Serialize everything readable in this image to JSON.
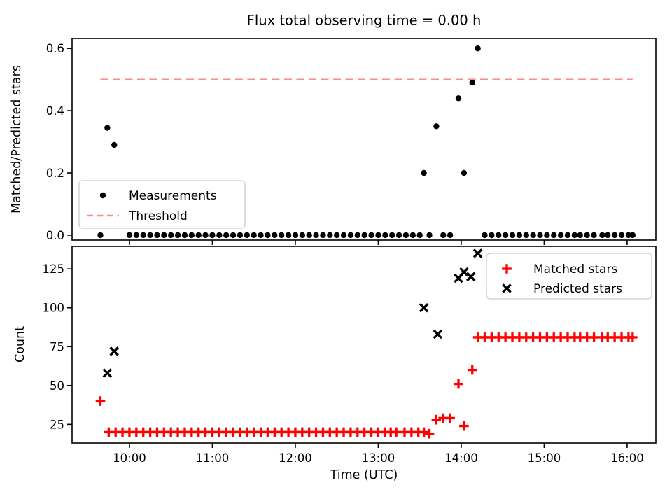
{
  "figure": {
    "title": "Flux total observing time = 0.00 h",
    "background_color": "#ffffff"
  },
  "colors": {
    "measurement_black": "#000000",
    "matched_red": "#ff0000",
    "threshold_pink": "#ff8a8a",
    "axis_black": "#000000",
    "legend_border": "#cccccc"
  },
  "chart_data": {
    "type": "scatter",
    "title": "Flux total observing time = 0.00 h",
    "x_axis": {
      "label": "Time (UTC)",
      "ticks": [
        "10:00",
        "11:00",
        "12:00",
        "13:00",
        "14:00",
        "15:00",
        "16:00"
      ],
      "tick_minutes": [
        60,
        120,
        180,
        240,
        300,
        360,
        420
      ],
      "range_minutes": [
        18.5,
        440.8
      ]
    },
    "subplots": [
      {
        "id": "ratio",
        "ylabel": "Matched/Predicted stars",
        "ytick_labels": [
          "0.0",
          "0.2",
          "0.4",
          "0.6"
        ],
        "yticks": [
          0.0,
          0.2,
          0.4,
          0.6
        ],
        "ylim": [
          -0.016,
          0.632
        ],
        "show_x_tick_labels": false,
        "grid": false,
        "threshold_value": 0.5,
        "legend": {
          "position": "lower-left",
          "entries": [
            {
              "label": "Measurements",
              "marker": "dot",
              "color": "#000000"
            },
            {
              "label": "Threshold",
              "marker": "dashed-line",
              "color": "#ff8a8a"
            }
          ]
        },
        "series": [
          {
            "name": "Measurements",
            "marker": "dot",
            "color": "#000000",
            "points": [
              [
                "09:39",
                0.0
              ],
              [
                "09:44",
                0.345
              ],
              [
                "09:49",
                0.29
              ],
              [
                "10:00",
                0.0
              ],
              [
                "10:05",
                0.0
              ],
              [
                "10:10",
                0.0
              ],
              [
                "10:15",
                0.0
              ],
              [
                "10:20",
                0.0
              ],
              [
                "10:25",
                0.0
              ],
              [
                "10:30",
                0.0
              ],
              [
                "10:35",
                0.0
              ],
              [
                "10:40",
                0.0
              ],
              [
                "10:45",
                0.0
              ],
              [
                "10:50",
                0.0
              ],
              [
                "10:55",
                0.0
              ],
              [
                "11:00",
                0.0
              ],
              [
                "11:05",
                0.0
              ],
              [
                "11:10",
                0.0
              ],
              [
                "11:15",
                0.0
              ],
              [
                "11:20",
                0.0
              ],
              [
                "11:25",
                0.0
              ],
              [
                "11:30",
                0.0
              ],
              [
                "11:35",
                0.0
              ],
              [
                "11:40",
                0.0
              ],
              [
                "11:45",
                0.0
              ],
              [
                "11:50",
                0.0
              ],
              [
                "11:55",
                0.0
              ],
              [
                "12:00",
                0.0
              ],
              [
                "12:05",
                0.0
              ],
              [
                "12:10",
                0.0
              ],
              [
                "12:15",
                0.0
              ],
              [
                "12:20",
                0.0
              ],
              [
                "12:25",
                0.0
              ],
              [
                "12:30",
                0.0
              ],
              [
                "12:35",
                0.0
              ],
              [
                "12:40",
                0.0
              ],
              [
                "12:45",
                0.0
              ],
              [
                "12:50",
                0.0
              ],
              [
                "12:55",
                0.0
              ],
              [
                "13:00",
                0.0
              ],
              [
                "13:05",
                0.0
              ],
              [
                "13:10",
                0.0
              ],
              [
                "13:15",
                0.0
              ],
              [
                "13:20",
                0.0
              ],
              [
                "13:25",
                0.0
              ],
              [
                "13:30",
                0.0
              ],
              [
                "13:33",
                0.2
              ],
              [
                "13:37",
                0.0
              ],
              [
                "13:42",
                0.35
              ],
              [
                "13:47",
                0.0
              ],
              [
                "13:52",
                0.0
              ],
              [
                "13:58",
                0.44
              ],
              [
                "14:02",
                0.2
              ],
              [
                "14:08",
                0.49
              ],
              [
                "14:12",
                0.6
              ],
              [
                "14:17",
                0.0
              ],
              [
                "14:22",
                0.0
              ],
              [
                "14:27",
                0.0
              ],
              [
                "14:32",
                0.0
              ],
              [
                "14:37",
                0.0
              ],
              [
                "14:42",
                0.0
              ],
              [
                "14:47",
                0.0
              ],
              [
                "14:52",
                0.0
              ],
              [
                "14:57",
                0.0
              ],
              [
                "15:02",
                0.0
              ],
              [
                "15:07",
                0.0
              ],
              [
                "15:12",
                0.0
              ],
              [
                "15:17",
                0.0
              ],
              [
                "15:22",
                0.0
              ],
              [
                "15:26",
                0.0
              ],
              [
                "15:31",
                0.0
              ],
              [
                "15:36",
                0.0
              ],
              [
                "15:42",
                0.0
              ],
              [
                "15:46",
                0.0
              ],
              [
                "15:51",
                0.0
              ],
              [
                "15:56",
                0.0
              ],
              [
                "16:01",
                0.0
              ],
              [
                "16:04",
                0.0
              ]
            ]
          }
        ]
      },
      {
        "id": "count",
        "ylabel": "Count",
        "ytick_labels": [
          "25",
          "50",
          "75",
          "100",
          "125"
        ],
        "yticks": [
          25,
          50,
          75,
          100,
          125
        ],
        "ylim": [
          13,
          139.5
        ],
        "show_x_tick_labels": true,
        "grid": false,
        "threshold_value": null,
        "legend": {
          "position": "upper-right",
          "entries": [
            {
              "label": "Matched stars",
              "marker": "plus",
              "color": "#ff0000"
            },
            {
              "label": "Predicted stars",
              "marker": "x",
              "color": "#000000"
            }
          ]
        },
        "series": [
          {
            "name": "Matched stars",
            "marker": "plus",
            "color": "#ff0000",
            "points": [
              [
                "09:39",
                40
              ],
              [
                "09:45",
                20
              ],
              [
                "09:50",
                20
              ],
              [
                "09:55",
                20
              ],
              [
                "10:00",
                20
              ],
              [
                "10:05",
                20
              ],
              [
                "10:10",
                20
              ],
              [
                "10:15",
                20
              ],
              [
                "10:20",
                20
              ],
              [
                "10:25",
                20
              ],
              [
                "10:30",
                20
              ],
              [
                "10:35",
                20
              ],
              [
                "10:40",
                20
              ],
              [
                "10:45",
                20
              ],
              [
                "10:50",
                20
              ],
              [
                "10:55",
                20
              ],
              [
                "11:00",
                20
              ],
              [
                "11:05",
                20
              ],
              [
                "11:10",
                20
              ],
              [
                "11:15",
                20
              ],
              [
                "11:20",
                20
              ],
              [
                "11:25",
                20
              ],
              [
                "11:30",
                20
              ],
              [
                "11:35",
                20
              ],
              [
                "11:40",
                20
              ],
              [
                "11:45",
                20
              ],
              [
                "11:50",
                20
              ],
              [
                "11:55",
                20
              ],
              [
                "12:00",
                20
              ],
              [
                "12:05",
                20
              ],
              [
                "12:10",
                20
              ],
              [
                "12:15",
                20
              ],
              [
                "12:20",
                20
              ],
              [
                "12:25",
                20
              ],
              [
                "12:30",
                20
              ],
              [
                "12:35",
                20
              ],
              [
                "12:40",
                20
              ],
              [
                "12:45",
                20
              ],
              [
                "12:50",
                20
              ],
              [
                "12:55",
                20
              ],
              [
                "13:00",
                20
              ],
              [
                "13:05",
                20
              ],
              [
                "13:09",
                20
              ],
              [
                "13:13",
                20
              ],
              [
                "13:19",
                20
              ],
              [
                "13:24",
                20
              ],
              [
                "13:29",
                20
              ],
              [
                "13:33",
                20
              ],
              [
                "13:37",
                19
              ],
              [
                "13:42",
                28
              ],
              [
                "13:47",
                29
              ],
              [
                "13:52",
                29
              ],
              [
                "13:58",
                51
              ],
              [
                "14:02",
                24
              ],
              [
                "14:08",
                60
              ],
              [
                "14:12",
                81
              ],
              [
                "14:17",
                81
              ],
              [
                "14:22",
                81
              ],
              [
                "14:27",
                81
              ],
              [
                "14:32",
                81
              ],
              [
                "14:37",
                81
              ],
              [
                "14:42",
                81
              ],
              [
                "14:47",
                81
              ],
              [
                "14:52",
                81
              ],
              [
                "14:57",
                81
              ],
              [
                "15:02",
                81
              ],
              [
                "15:07",
                81
              ],
              [
                "15:12",
                81
              ],
              [
                "15:17",
                81
              ],
              [
                "15:22",
                81
              ],
              [
                "15:26",
                81
              ],
              [
                "15:31",
                81
              ],
              [
                "15:36",
                81
              ],
              [
                "15:42",
                81
              ],
              [
                "15:46",
                81
              ],
              [
                "15:51",
                81
              ],
              [
                "15:56",
                81
              ],
              [
                "16:01",
                81
              ],
              [
                "16:04",
                81
              ]
            ]
          },
          {
            "name": "Predicted stars",
            "marker": "x",
            "color": "#000000",
            "points": [
              [
                "09:44",
                58
              ],
              [
                "09:49",
                72
              ],
              [
                "13:33",
                100
              ],
              [
                "13:43",
                83
              ],
              [
                "13:58",
                119
              ],
              [
                "14:02",
                123
              ],
              [
                "14:07",
                120
              ],
              [
                "14:12",
                135
              ]
            ]
          }
        ]
      }
    ]
  }
}
